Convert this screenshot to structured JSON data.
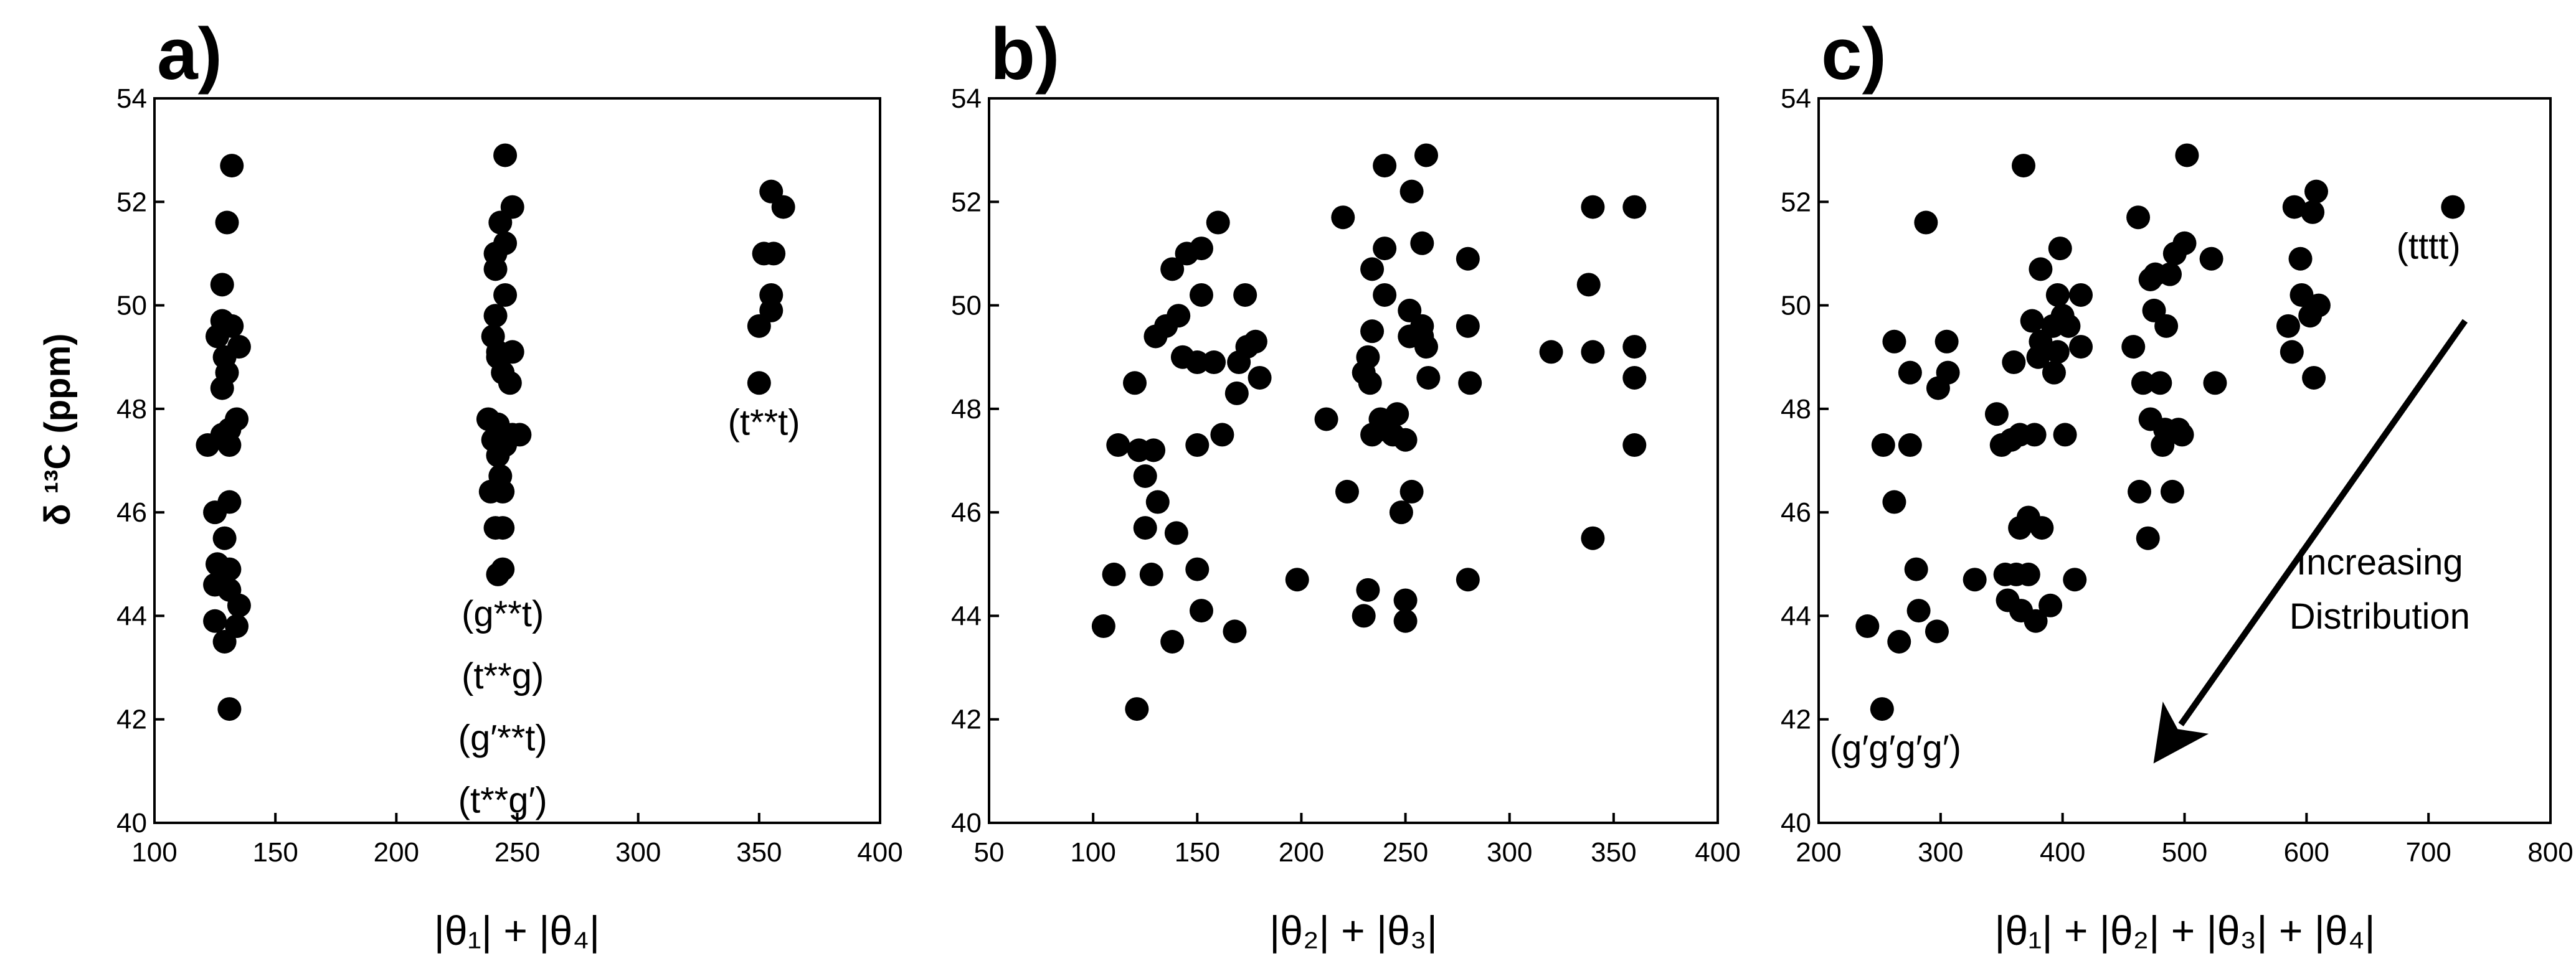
{
  "ylabel": "δ ¹³C (ppm)",
  "chart_data": [
    {
      "type": "scatter",
      "panel": "a)",
      "xlabel": "|θ₁| + |θ₄|",
      "ylabel": "δ ¹³C (ppm)",
      "xlim": [
        100,
        400
      ],
      "ylim": [
        40,
        54
      ],
      "xticks": [
        100,
        150,
        200,
        250,
        300,
        350,
        400
      ],
      "yticks": [
        40,
        42,
        44,
        46,
        48,
        50,
        52,
        54
      ],
      "annotations": [
        {
          "text": "(t**t)",
          "x": 352,
          "y": 47.5
        },
        {
          "text": "(g**t)",
          "x": 244,
          "y": 43.8
        },
        {
          "text": "(t**g)",
          "x": 244,
          "y": 42.6
        },
        {
          "text": "(g′**t)",
          "x": 244,
          "y": 41.4
        },
        {
          "text": "(t**g′)",
          "x": 244,
          "y": 40.2
        }
      ],
      "points": [
        [
          132,
          52.7
        ],
        [
          130,
          51.6
        ],
        [
          128,
          50.4
        ],
        [
          128,
          49.7
        ],
        [
          132,
          49.6
        ],
        [
          135,
          49.2
        ],
        [
          126,
          49.4
        ],
        [
          129,
          49.0
        ],
        [
          130,
          48.7
        ],
        [
          128,
          48.4
        ],
        [
          134,
          47.8
        ],
        [
          122,
          47.3
        ],
        [
          128,
          47.5
        ],
        [
          131,
          47.6
        ],
        [
          131,
          47.3
        ],
        [
          131,
          46.2
        ],
        [
          125,
          46.0
        ],
        [
          129,
          45.5
        ],
        [
          126,
          45.0
        ],
        [
          131,
          44.9
        ],
        [
          128,
          44.7
        ],
        [
          125,
          44.6
        ],
        [
          131,
          44.5
        ],
        [
          135,
          44.2
        ],
        [
          125,
          43.9
        ],
        [
          134,
          43.8
        ],
        [
          129,
          43.5
        ],
        [
          131,
          42.2
        ],
        [
          245,
          52.9
        ],
        [
          248,
          51.9
        ],
        [
          243,
          51.6
        ],
        [
          245,
          51.2
        ],
        [
          241,
          51.0
        ],
        [
          241,
          50.7
        ],
        [
          245,
          50.2
        ],
        [
          241,
          49.8
        ],
        [
          240,
          49.4
        ],
        [
          242,
          49.1
        ],
        [
          248,
          49.1
        ],
        [
          242,
          49.0
        ],
        [
          244,
          48.7
        ],
        [
          247,
          48.5
        ],
        [
          238,
          47.8
        ],
        [
          242,
          47.7
        ],
        [
          248,
          47.5
        ],
        [
          251,
          47.5
        ],
        [
          240,
          47.4
        ],
        [
          245,
          47.3
        ],
        [
          242,
          47.1
        ],
        [
          243,
          46.7
        ],
        [
          244,
          46.4
        ],
        [
          239,
          46.4
        ],
        [
          241,
          45.7
        ],
        [
          244,
          45.7
        ],
        [
          244,
          44.9
        ],
        [
          242,
          44.8
        ],
        [
          355,
          52.2
        ],
        [
          360,
          51.9
        ],
        [
          352,
          51.0
        ],
        [
          356,
          51.0
        ],
        [
          355,
          50.2
        ],
        [
          355,
          49.9
        ],
        [
          350,
          49.6
        ],
        [
          350,
          48.5
        ]
      ]
    },
    {
      "type": "scatter",
      "panel": "b)",
      "xlabel": "|θ₂| + |θ₃|",
      "xlim": [
        50,
        400
      ],
      "ylim": [
        40,
        54
      ],
      "xticks": [
        50,
        100,
        150,
        200,
        250,
        300,
        350,
        400
      ],
      "yticks": [
        40,
        42,
        44,
        46,
        48,
        50,
        52,
        54
      ],
      "points": [
        [
          105,
          43.8
        ],
        [
          110,
          44.8
        ],
        [
          112,
          47.3
        ],
        [
          120,
          48.5
        ],
        [
          121,
          42.2
        ],
        [
          122,
          47.2
        ],
        [
          125,
          45.7
        ],
        [
          125,
          46.7
        ],
        [
          129,
          47.2
        ],
        [
          128,
          44.8
        ],
        [
          131,
          46.2
        ],
        [
          130,
          49.4
        ],
        [
          135,
          49.6
        ],
        [
          138,
          43.5
        ],
        [
          140,
          45.6
        ],
        [
          138,
          50.7
        ],
        [
          141,
          49.8
        ],
        [
          143,
          49.0
        ],
        [
          145,
          51.0
        ],
        [
          150,
          48.9
        ],
        [
          150,
          47.3
        ],
        [
          152,
          51.1
        ],
        [
          150,
          44.9
        ],
        [
          152,
          50.2
        ],
        [
          152,
          44.1
        ],
        [
          158,
          48.9
        ],
        [
          160,
          51.6
        ],
        [
          162,
          47.5
        ],
        [
          168,
          43.7
        ],
        [
          169,
          48.3
        ],
        [
          170,
          48.9
        ],
        [
          173,
          50.2
        ],
        [
          174,
          49.2
        ],
        [
          178,
          49.3
        ],
        [
          180,
          48.6
        ],
        [
          198,
          44.7
        ],
        [
          212,
          47.8
        ],
        [
          220,
          51.7
        ],
        [
          222,
          46.4
        ],
        [
          230,
          44.0
        ],
        [
          230,
          48.7
        ],
        [
          232,
          49.0
        ],
        [
          232,
          44.5
        ],
        [
          233,
          48.5
        ],
        [
          234,
          47.5
        ],
        [
          234,
          49.5
        ],
        [
          234,
          50.7
        ],
        [
          238,
          47.6
        ],
        [
          238,
          47.8
        ],
        [
          240,
          51.1
        ],
        [
          240,
          50.2
        ],
        [
          240,
          52.7
        ],
        [
          244,
          47.5
        ],
        [
          246,
          47.9
        ],
        [
          248,
          46.0
        ],
        [
          250,
          47.4
        ],
        [
          250,
          44.3
        ],
        [
          250,
          43.9
        ],
        [
          252,
          49.4
        ],
        [
          252,
          49.9
        ],
        [
          253,
          52.2
        ],
        [
          253,
          46.4
        ],
        [
          258,
          49.4
        ],
        [
          258,
          49.6
        ],
        [
          258,
          51.2
        ],
        [
          260,
          52.9
        ],
        [
          260,
          49.2
        ],
        [
          261,
          48.6
        ],
        [
          280,
          50.9
        ],
        [
          280,
          49.6
        ],
        [
          281,
          48.5
        ],
        [
          280,
          44.7
        ],
        [
          320,
          49.1
        ],
        [
          338,
          50.4
        ],
        [
          340,
          51.9
        ],
        [
          340,
          49.1
        ],
        [
          340,
          45.5
        ],
        [
          360,
          51.9
        ],
        [
          360,
          49.2
        ],
        [
          360,
          48.6
        ],
        [
          360,
          47.3
        ]
      ]
    },
    {
      "type": "scatter",
      "panel": "c)",
      "xlabel": "|θ₁| + |θ₂| + |θ₃| + |θ₄|",
      "xlim": [
        200,
        800
      ],
      "ylim": [
        40,
        54
      ],
      "xticks": [
        200,
        300,
        400,
        500,
        600,
        700,
        800
      ],
      "yticks": [
        40,
        42,
        44,
        46,
        48,
        50,
        52,
        54
      ],
      "annotations": [
        {
          "text": "(tttt)",
          "x": 700,
          "y": 50.9
        },
        {
          "text": "Increasing",
          "x": 660,
          "y": 44.8
        },
        {
          "text": "Distribution",
          "x": 660,
          "y": 43.75
        },
        {
          "text": "(g′g′g′g′)",
          "x": 263,
          "y": 41.2
        }
      ],
      "arrow": {
        "from": [
          730,
          49.7
        ],
        "to": [
          497,
          41.9
        ]
      },
      "points": [
        [
          240,
          43.8
        ],
        [
          252,
          42.2
        ],
        [
          253,
          47.3
        ],
        [
          262,
          49.3
        ],
        [
          262,
          46.2
        ],
        [
          266,
          43.5
        ],
        [
          275,
          47.3
        ],
        [
          275,
          48.7
        ],
        [
          280,
          44.9
        ],
        [
          282,
          44.1
        ],
        [
          288,
          51.6
        ],
        [
          297,
          43.7
        ],
        [
          298,
          48.4
        ],
        [
          305,
          49.3
        ],
        [
          306,
          48.7
        ],
        [
          328,
          44.7
        ],
        [
          346,
          47.9
        ],
        [
          350,
          47.3
        ],
        [
          353,
          44.8
        ],
        [
          355,
          44.3
        ],
        [
          358,
          47.4
        ],
        [
          360,
          48.9
        ],
        [
          362,
          44.8
        ],
        [
          365,
          45.7
        ],
        [
          365,
          47.5
        ],
        [
          366,
          44.1
        ],
        [
          368,
          52.7
        ],
        [
          372,
          45.9
        ],
        [
          372,
          44.8
        ],
        [
          375,
          49.7
        ],
        [
          377,
          47.5
        ],
        [
          378,
          43.9
        ],
        [
          380,
          49.0
        ],
        [
          382,
          50.7
        ],
        [
          382,
          49.3
        ],
        [
          383,
          45.7
        ],
        [
          390,
          44.2
        ],
        [
          392,
          49.6
        ],
        [
          393,
          48.7
        ],
        [
          396,
          49.1
        ],
        [
          396,
          50.2
        ],
        [
          398,
          51.1
        ],
        [
          400,
          49.8
        ],
        [
          402,
          47.5
        ],
        [
          405,
          49.6
        ],
        [
          410,
          44.7
        ],
        [
          415,
          50.2
        ],
        [
          415,
          49.2
        ],
        [
          458,
          49.2
        ],
        [
          462,
          51.7
        ],
        [
          463,
          46.4
        ],
        [
          466,
          48.5
        ],
        [
          470,
          45.5
        ],
        [
          472,
          47.8
        ],
        [
          472,
          50.5
        ],
        [
          475,
          49.9
        ],
        [
          476,
          50.6
        ],
        [
          480,
          48.5
        ],
        [
          482,
          47.3
        ],
        [
          484,
          47.6
        ],
        [
          485,
          49.6
        ],
        [
          488,
          50.6
        ],
        [
          490,
          46.4
        ],
        [
          492,
          51.0
        ],
        [
          495,
          47.6
        ],
        [
          498,
          47.5
        ],
        [
          500,
          51.2
        ],
        [
          502,
          52.9
        ],
        [
          522,
          50.9
        ],
        [
          525,
          48.5
        ],
        [
          585,
          49.6
        ],
        [
          588,
          49.1
        ],
        [
          590,
          51.9
        ],
        [
          595,
          50.9
        ],
        [
          596,
          50.2
        ],
        [
          603,
          49.8
        ],
        [
          605,
          51.8
        ],
        [
          606,
          48.6
        ],
        [
          608,
          52.2
        ],
        [
          610,
          50.0
        ],
        [
          720,
          51.9
        ]
      ]
    }
  ]
}
